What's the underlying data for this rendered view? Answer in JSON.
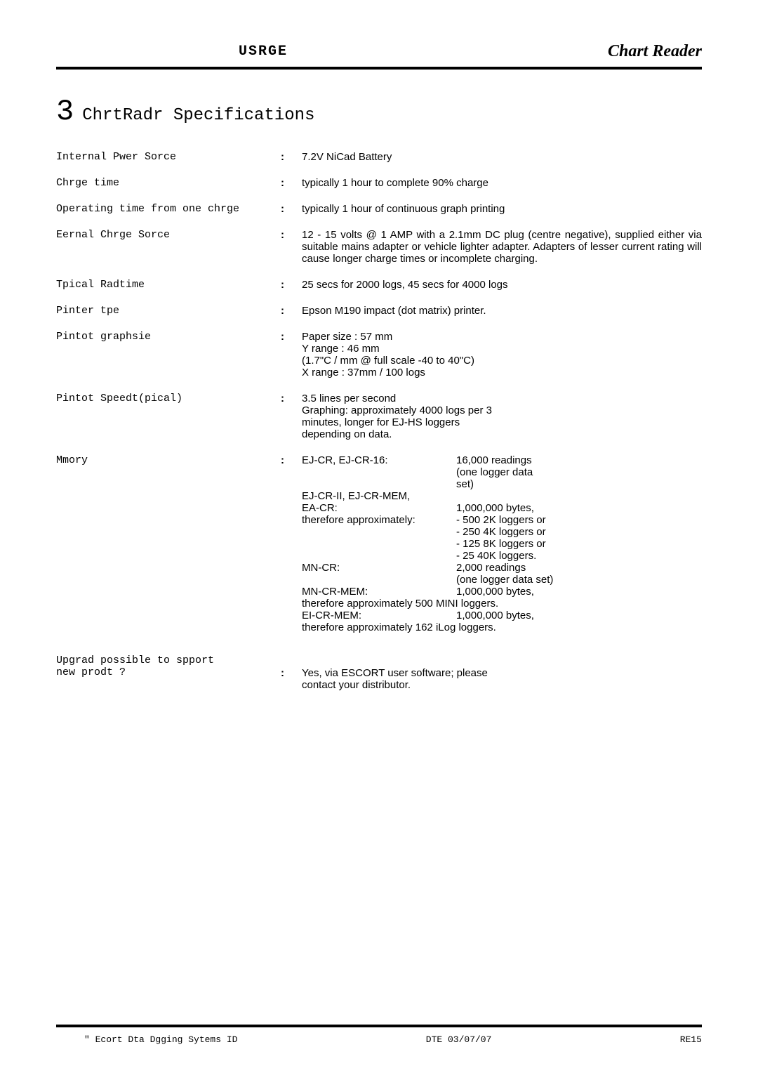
{
  "header": {
    "center": "USRGE",
    "right": "Chart Reader"
  },
  "section": {
    "number": "3",
    "title": "ChrtRadr Specifications"
  },
  "specs": [
    {
      "label": "Internal Pwer Sorce",
      "value": "7.2V NiCad Battery"
    },
    {
      "label": "Chrge time",
      "value": "typically 1 hour to complete 90% charge"
    },
    {
      "label": "Operating time from one chrge",
      "value": "typically 1 hour of continuous graph printing"
    },
    {
      "label": "Eernal Chrge Sorce",
      "value": "12 - 15 volts @ 1 AMP with a 2.1mm DC plug (centre negative), supplied either via suitable mains adapter or vehicle lighter adapter. Adapters of lesser current rating will cause longer charge times or incomplete charging.",
      "justified": true
    },
    {
      "label": "Tpical Radtime",
      "value": "25 secs for 2000 logs, 45 secs for 4000 logs"
    },
    {
      "label": "Pinter tpe",
      "value": "Epson M190 impact (dot matrix) printer."
    },
    {
      "label": "Pintot graphsie",
      "lines": [
        "Paper size : 57 mm",
        "Y range : 46 mm",
        "(1.7\"C / mm @ full scale -40 to 40\"C)",
        "X range : 37mm / 100 logs"
      ]
    },
    {
      "label": "Pintot Speedt(pical)",
      "lines": [
        "3.5 lines per second",
        "Graphing: approximately 4000 logs per 3",
        "minutes, longer for EJ-HS loggers",
        "depending on  data."
      ]
    }
  ],
  "memory": {
    "label": "Mmory",
    "items": [
      {
        "left": "EJ-CR, EJ-CR-16:",
        "right": "16,000 readings"
      },
      {
        "left": "",
        "right": "(one logger data"
      },
      {
        "left": "",
        "right": "set)"
      },
      {
        "left": "EJ-CR-II, EJ-CR-MEM,",
        "right": ""
      },
      {
        "left": "EA-CR:",
        "right": "1,000,000 bytes,"
      },
      {
        "left": "therefore approximately:",
        "right": "- 500 2K loggers or"
      },
      {
        "left": "",
        "right": "- 250 4K loggers or"
      },
      {
        "left": "",
        "right": "- 125 8K loggers or"
      },
      {
        "left": "",
        "right": "- 25  40K loggers."
      },
      {
        "left": "MN-CR:",
        "right": "2,000 readings"
      },
      {
        "left": "",
        "right": "(one logger data set)"
      },
      {
        "left": "MN-CR-MEM:",
        "right": "  1,000,000 bytes,"
      },
      {
        "full": "therefore approximately 500 MINI loggers."
      },
      {
        "left": "EI-CR-MEM:",
        "right": "1,000,000 bytes,"
      },
      {
        "full": "therefore approximately 162 iLog loggers."
      }
    ]
  },
  "upgrade": {
    "label1": "Upgrad possible to spport",
    "label2": "new prodt ?",
    "lines": [
      "Yes, via ESCORT user software; please",
      "contact your distributor."
    ]
  },
  "footer": {
    "left": "\" Ecort Dta Dgging Sytems ID",
    "center": "DTE 03/07/07",
    "right": "RE15"
  }
}
